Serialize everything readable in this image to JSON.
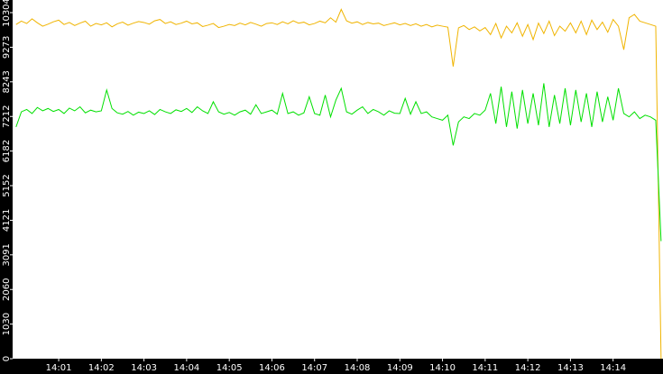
{
  "chart_data": {
    "type": "line",
    "x": [
      840,
      840.125,
      840.25,
      840.375,
      840.5,
      840.625,
      840.75,
      840.875,
      841,
      841.125,
      841.25,
      841.375,
      841.5,
      841.625,
      841.75,
      841.875,
      842,
      842.125,
      842.25,
      842.375,
      842.5,
      842.625,
      842.75,
      842.875,
      843,
      843.125,
      843.25,
      843.375,
      843.5,
      843.625,
      843.75,
      843.875,
      844,
      844.125,
      844.25,
      844.375,
      844.5,
      844.625,
      844.75,
      844.875,
      845,
      845.125,
      845.25,
      845.375,
      845.5,
      845.625,
      845.75,
      845.875,
      846,
      846.125,
      846.25,
      846.375,
      846.5,
      846.625,
      846.75,
      846.875,
      847,
      847.125,
      847.25,
      847.375,
      847.5,
      847.625,
      847.75,
      847.875,
      848,
      848.125,
      848.25,
      848.375,
      848.5,
      848.625,
      848.75,
      848.875,
      849,
      849.125,
      849.25,
      849.375,
      849.5,
      849.625,
      849.75,
      849.875,
      850,
      850.125,
      850.25,
      850.375,
      850.5,
      850.625,
      850.75,
      850.875,
      851,
      851.125,
      851.25,
      851.375,
      851.5,
      851.625,
      851.75,
      851.875,
      852,
      852.125,
      852.25,
      852.375,
      852.5,
      852.625,
      852.75,
      852.875,
      853,
      853.125,
      853.25,
      853.375,
      853.5,
      853.625,
      853.75,
      853.875,
      854,
      854.125,
      854.25,
      854.375,
      854.5,
      854.625,
      854.75,
      854.875,
      855,
      855.125
    ],
    "series": [
      {
        "color": "#f0b400",
        "values": [
          9950,
          10050,
          9980,
          10120,
          10000,
          9900,
          9960,
          10030,
          10080,
          9950,
          10010,
          9920,
          9990,
          10050,
          9900,
          9980,
          9940,
          10000,
          9880,
          9970,
          10020,
          9930,
          9990,
          10040,
          10010,
          9960,
          10060,
          10100,
          9980,
          10030,
          9950,
          9990,
          10050,
          9970,
          10000,
          9890,
          9930,
          9980,
          9860,
          9900,
          9950,
          9920,
          9990,
          9940,
          10010,
          9960,
          9900,
          9980,
          10000,
          9950,
          10030,
          9970,
          10060,
          9990,
          10020,
          9940,
          9980,
          10050,
          10000,
          10150,
          10020,
          10400,
          10060,
          9990,
          10030,
          9950,
          10010,
          9970,
          9990,
          9920,
          9960,
          10000,
          9940,
          9980,
          9920,
          9970,
          9900,
          9950,
          9880,
          9930,
          9900,
          9870,
          8700,
          9850,
          9920,
          9800,
          9880,
          9760,
          9860,
          9650,
          9980,
          9550,
          9900,
          9700,
          10000,
          9600,
          9950,
          9500,
          9990,
          9680,
          10050,
          9620,
          9900,
          9750,
          10000,
          9700,
          10050,
          9650,
          10080,
          9800,
          10020,
          9720,
          10100,
          9900,
          9200,
          10150,
          10250,
          10050,
          10000,
          9950,
          9900,
          0
        ]
      },
      {
        "color": "#00e000",
        "values": [
          6900,
          7350,
          7420,
          7300,
          7480,
          7380,
          7450,
          7360,
          7420,
          7300,
          7460,
          7380,
          7500,
          7320,
          7400,
          7350,
          7380,
          8000,
          7450,
          7320,
          7280,
          7360,
          7250,
          7340,
          7300,
          7380,
          7270,
          7420,
          7350,
          7300,
          7410,
          7360,
          7450,
          7330,
          7500,
          7380,
          7300,
          7650,
          7350,
          7280,
          7330,
          7250,
          7350,
          7400,
          7280,
          7560,
          7300,
          7350,
          7400,
          7280,
          7900,
          7300,
          7350,
          7250,
          7320,
          7800,
          7300,
          7250,
          7850,
          7200,
          7700,
          8050,
          7350,
          7280,
          7400,
          7500,
          7300,
          7420,
          7350,
          7250,
          7380,
          7310,
          7300,
          7750,
          7280,
          7650,
          7300,
          7350,
          7200,
          7150,
          7100,
          7250,
          6350,
          7050,
          7200,
          7150,
          7300,
          7250,
          7400,
          7900,
          7000,
          8100,
          6900,
          7950,
          6850,
          8000,
          7000,
          7900,
          6950,
          8200,
          6900,
          7850,
          7000,
          8050,
          6950,
          8000,
          7050,
          7900,
          6900,
          7950,
          7050,
          7800,
          7100,
          8050,
          7300,
          7200,
          7350,
          7150,
          7250,
          7200,
          7100,
          3500
        ]
      }
    ],
    "xlim": [
      839.92,
      855.17
    ],
    "xticks": [
      {
        "value": 841,
        "label": "14:01"
      },
      {
        "value": 842,
        "label": "14:02"
      },
      {
        "value": 843,
        "label": "14:03"
      },
      {
        "value": 844,
        "label": "14:04"
      },
      {
        "value": 845,
        "label": "14:05"
      },
      {
        "value": 846,
        "label": "14:06"
      },
      {
        "value": 847,
        "label": "14:07"
      },
      {
        "value": 848,
        "label": "14:08"
      },
      {
        "value": 849,
        "label": "14:09"
      },
      {
        "value": 850,
        "label": "14:10"
      },
      {
        "value": 851,
        "label": "14:11"
      },
      {
        "value": 852,
        "label": "14:12"
      },
      {
        "value": 853,
        "label": "14:13"
      },
      {
        "value": 854,
        "label": "14:14"
      }
    ],
    "ylim": [
      0,
      10304
    ],
    "yticks": [
      0,
      1030,
      2060,
      3091,
      4121,
      5152,
      6182,
      7212,
      8243,
      9273,
      10304
    ]
  }
}
